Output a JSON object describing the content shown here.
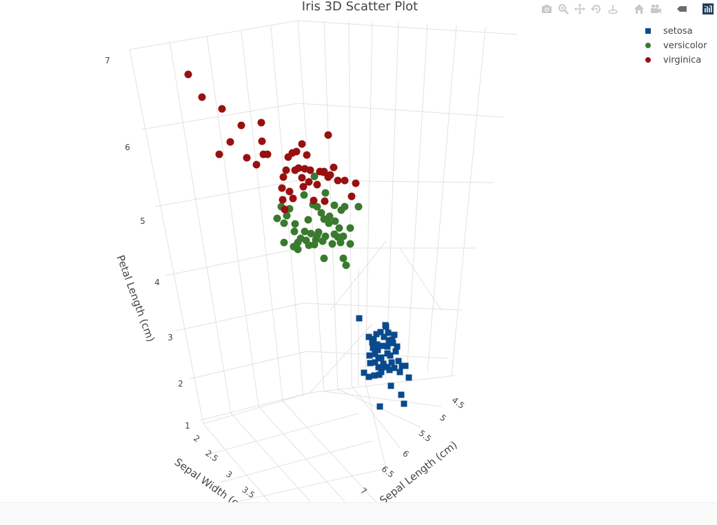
{
  "chart_data": {
    "type": "scatter",
    "title": "Iris 3D Scatter Plot",
    "xlabel": "Sepal Length (cm)",
    "ylabel": "Sepal Width (cm)",
    "zlabel": "Petal Length (cm)",
    "x_ticks": [
      "4.5",
      "5",
      "5.5",
      "6",
      "6.5",
      "7"
    ],
    "y_ticks": [
      "2",
      "2.5",
      "3",
      "3.5"
    ],
    "z_ticks": [
      "7",
      "6",
      "5",
      "4",
      "3",
      "2",
      "1"
    ],
    "grid": true,
    "legend_position": "top-right",
    "series": [
      {
        "name": "setosa",
        "marker": "square",
        "color": "#0a4a8c",
        "points": [
          [
            521,
            462
          ],
          [
            535,
            489
          ],
          [
            546,
            485
          ],
          [
            560,
            474
          ],
          [
            572,
            486
          ],
          [
            552,
            482
          ],
          [
            564,
            494
          ],
          [
            540,
            497
          ],
          [
            548,
            508
          ],
          [
            556,
            502
          ],
          [
            570,
            498
          ],
          [
            576,
            503
          ],
          [
            562,
            513
          ],
          [
            549,
            520
          ],
          [
            536,
            516
          ],
          [
            544,
            526
          ],
          [
            556,
            528
          ],
          [
            568,
            526
          ],
          [
            578,
            524
          ],
          [
            583,
            531
          ],
          [
            565,
            537
          ],
          [
            553,
            540
          ],
          [
            543,
            545
          ],
          [
            535,
            547
          ],
          [
            528,
            541
          ],
          [
            588,
            531
          ],
          [
            593,
            548
          ],
          [
            567,
            560
          ],
          [
            582,
            573
          ],
          [
            586,
            586
          ],
          [
            551,
            590
          ],
          [
            559,
            472
          ],
          [
            563,
            483
          ],
          [
            557,
            489
          ],
          [
            542,
            492
          ],
          [
            574,
            510
          ],
          [
            566,
            516
          ],
          [
            544,
            514
          ],
          [
            537,
            527
          ],
          [
            562,
            533
          ],
          [
            572,
            534
          ],
          [
            550,
            544
          ],
          [
            580,
            540
          ],
          [
            553,
            519
          ],
          [
            547,
            500
          ],
          [
            569,
            493
          ],
          [
            562,
            503
          ],
          [
            541,
            505
          ],
          [
            557,
            532
          ],
          [
            549,
            533
          ]
        ]
      },
      {
        "name": "versicolor",
        "marker": "circle",
        "color": "#3a7a2f",
        "points": [
          [
            456,
            256
          ],
          [
            441,
            283
          ],
          [
            472,
            280
          ],
          [
            460,
            300
          ],
          [
            485,
            298
          ],
          [
            500,
            300
          ],
          [
            520,
            300
          ],
          [
            408,
            300
          ],
          [
            420,
            303
          ],
          [
            402,
            317
          ],
          [
            412,
            324
          ],
          [
            428,
            325
          ],
          [
            447,
            319
          ],
          [
            470,
            318
          ],
          [
            478,
            314
          ],
          [
            492,
            331
          ],
          [
            508,
            331
          ],
          [
            427,
            336
          ],
          [
            442,
            336
          ],
          [
            460,
            342
          ],
          [
            472,
            343
          ],
          [
            485,
            340
          ],
          [
            498,
            343
          ],
          [
            412,
            352
          ],
          [
            432,
            352
          ],
          [
            444,
            349
          ],
          [
            456,
            355
          ],
          [
            468,
            350
          ],
          [
            482,
            354
          ],
          [
            494,
            352
          ],
          [
            508,
            354
          ],
          [
            432,
            362
          ],
          [
            470,
            375
          ],
          [
            498,
            375
          ],
          [
            502,
            385
          ],
          [
            454,
            297
          ],
          [
            466,
            309
          ],
          [
            486,
            321
          ],
          [
            451,
            339
          ],
          [
            462,
            337
          ],
          [
            477,
            324
          ],
          [
            436,
            346
          ],
          [
            490,
            344
          ],
          [
            458,
            348
          ],
          [
            416,
            313
          ],
          [
            495,
            305
          ],
          [
            426,
            358
          ],
          [
            448,
            356
          ]
        ]
      },
      {
        "name": "virginica",
        "marker": "circle",
        "color": "#991010",
        "points": [
          [
            273,
            108
          ],
          [
            293,
            141
          ],
          [
            322,
            158
          ],
          [
            350,
            182
          ],
          [
            379,
            178
          ],
          [
            334,
            206
          ],
          [
            380,
            205
          ],
          [
            476,
            196
          ],
          [
            438,
            209
          ],
          [
            382,
            224
          ],
          [
            388,
            224
          ],
          [
            424,
            222
          ],
          [
            430,
            220
          ],
          [
            418,
            228
          ],
          [
            445,
            225
          ],
          [
            358,
            229
          ],
          [
            372,
            239
          ],
          [
            318,
            224
          ],
          [
            415,
            247
          ],
          [
            428,
            247
          ],
          [
            442,
            245
          ],
          [
            450,
            247
          ],
          [
            464,
            249
          ],
          [
            470,
            249
          ],
          [
            484,
            243
          ],
          [
            411,
            257
          ],
          [
            438,
            258
          ],
          [
            479,
            254
          ],
          [
            490,
            262
          ],
          [
            500,
            262
          ],
          [
            516,
            266
          ],
          [
            409,
            273
          ],
          [
            420,
            278
          ],
          [
            440,
            271
          ],
          [
            460,
            268
          ],
          [
            410,
            290
          ],
          [
            455,
            291
          ],
          [
            471,
            292
          ],
          [
            510,
            285
          ],
          [
            413,
            304
          ],
          [
            425,
            288
          ],
          [
            469,
            250
          ],
          [
            433,
            244
          ],
          [
            476,
            257
          ],
          [
            448,
            264
          ]
        ]
      }
    ]
  },
  "legend": {
    "items": [
      {
        "label": "setosa",
        "color": "#0a4a8c",
        "marker": "square"
      },
      {
        "label": "versicolor",
        "color": "#3a7a2f",
        "marker": "circle"
      },
      {
        "label": "virginica",
        "color": "#991010",
        "marker": "circle"
      }
    ]
  },
  "modebar": {
    "buttons": [
      {
        "name": "camera-icon"
      },
      {
        "name": "zoom-icon"
      },
      {
        "name": "pan-icon"
      },
      {
        "name": "orbit-rotation-icon"
      },
      {
        "name": "turntable-rotation-icon"
      },
      {
        "name": "home-icon"
      },
      {
        "name": "video-camera-icon"
      },
      {
        "name": "spike-lines-icon"
      },
      {
        "name": "plotly-logo-icon"
      }
    ]
  }
}
